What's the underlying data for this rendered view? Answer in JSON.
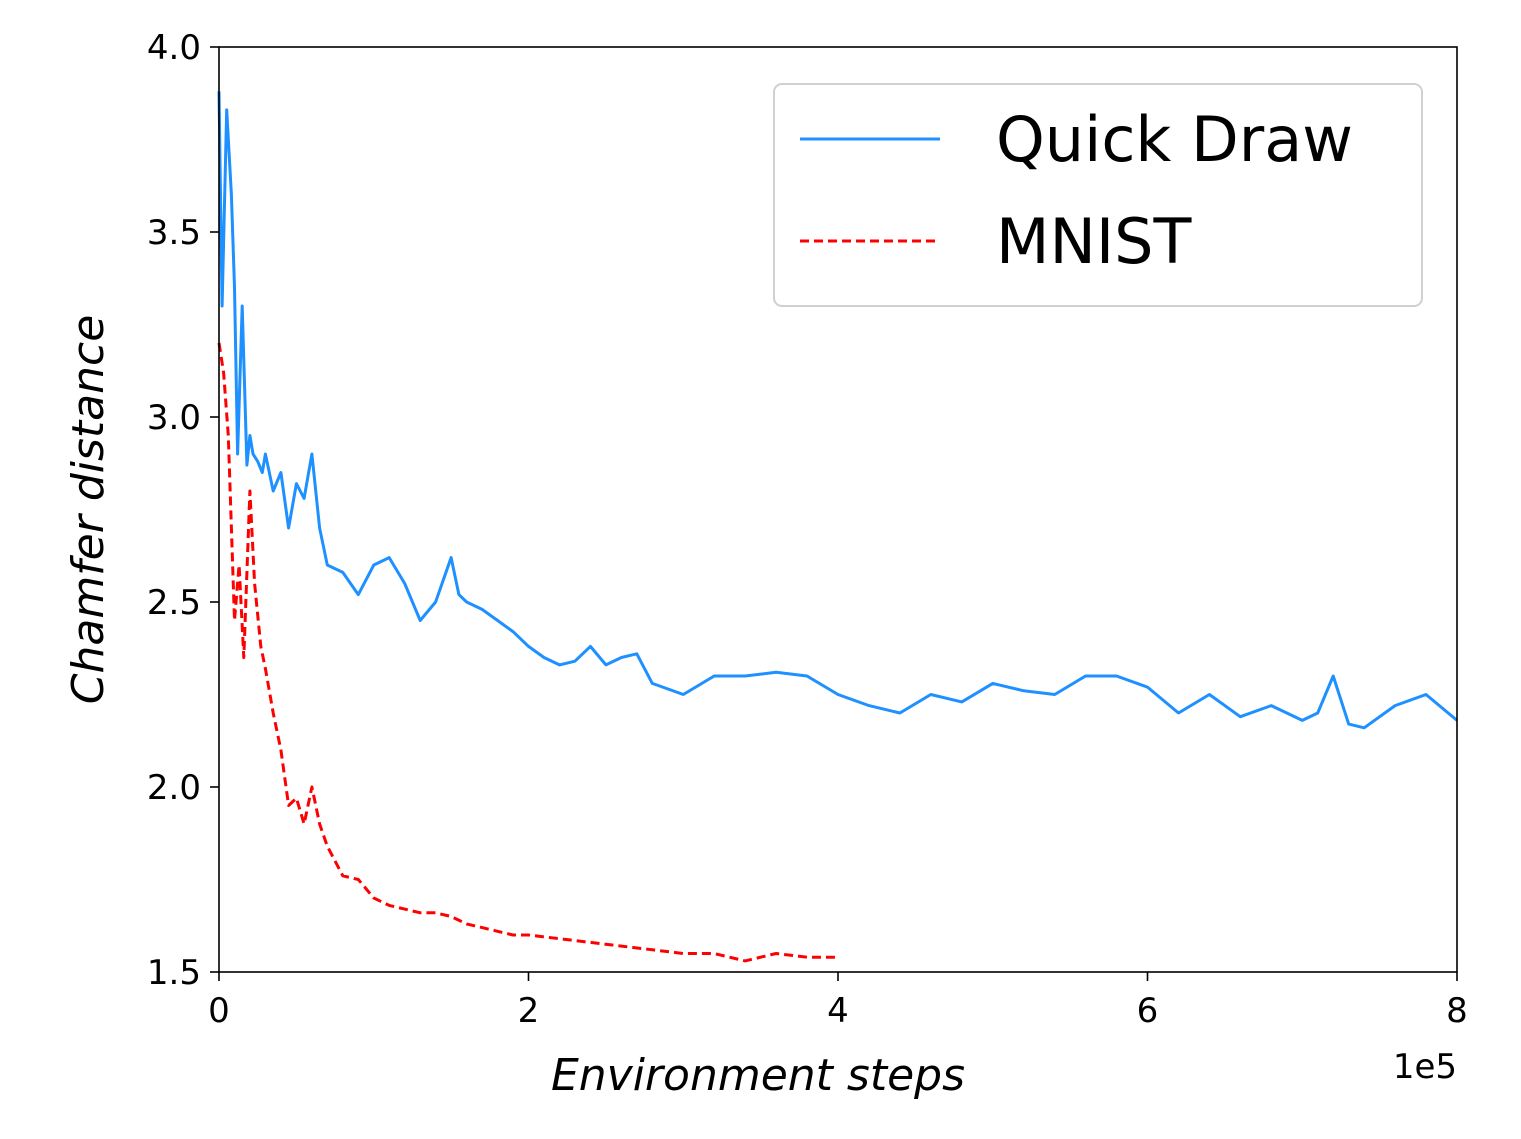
{
  "chart_data": {
    "type": "line",
    "xlabel": "Environment steps",
    "ylabel": "Chamfer distance",
    "x_offset_label": "1e5",
    "xlim": [
      0,
      8
    ],
    "ylim": [
      1.5,
      4.0
    ],
    "xticks": [
      0,
      2,
      4,
      6,
      8
    ],
    "xtick_labels": [
      "0",
      "2",
      "4",
      "6",
      "8"
    ],
    "yticks": [
      1.5,
      2.0,
      2.5,
      3.0,
      3.5,
      4.0
    ],
    "ytick_labels": [
      "1.5",
      "2.0",
      "2.5",
      "3.0",
      "3.5",
      "4.0"
    ],
    "grid": false,
    "legend_position": "top-right",
    "series": [
      {
        "name": "Quick Draw",
        "color": "#1e90ff",
        "style": "solid",
        "x": [
          0,
          0.02,
          0.05,
          0.08,
          0.1,
          0.12,
          0.15,
          0.18,
          0.2,
          0.22,
          0.25,
          0.28,
          0.3,
          0.35,
          0.4,
          0.45,
          0.5,
          0.55,
          0.6,
          0.65,
          0.7,
          0.8,
          0.9,
          1.0,
          1.1,
          1.2,
          1.3,
          1.4,
          1.5,
          1.55,
          1.6,
          1.7,
          1.8,
          1.9,
          2.0,
          2.1,
          2.2,
          2.3,
          2.4,
          2.5,
          2.6,
          2.7,
          2.8,
          3.0,
          3.2,
          3.4,
          3.6,
          3.8,
          4.0,
          4.2,
          4.4,
          4.6,
          4.8,
          5.0,
          5.2,
          5.4,
          5.6,
          5.8,
          6.0,
          6.2,
          6.4,
          6.6,
          6.8,
          7.0,
          7.1,
          7.2,
          7.3,
          7.4,
          7.6,
          7.8,
          8.0
        ],
        "y": [
          3.88,
          3.3,
          3.83,
          3.6,
          3.35,
          2.9,
          3.3,
          2.87,
          2.95,
          2.9,
          2.88,
          2.85,
          2.9,
          2.8,
          2.85,
          2.7,
          2.82,
          2.78,
          2.9,
          2.7,
          2.6,
          2.58,
          2.52,
          2.6,
          2.62,
          2.55,
          2.45,
          2.5,
          2.62,
          2.52,
          2.5,
          2.48,
          2.45,
          2.42,
          2.38,
          2.35,
          2.33,
          2.34,
          2.38,
          2.33,
          2.35,
          2.36,
          2.28,
          2.25,
          2.3,
          2.3,
          2.31,
          2.3,
          2.25,
          2.22,
          2.2,
          2.25,
          2.23,
          2.28,
          2.26,
          2.25,
          2.3,
          2.3,
          2.27,
          2.2,
          2.25,
          2.19,
          2.22,
          2.18,
          2.2,
          2.3,
          2.17,
          2.16,
          2.22,
          2.25,
          2.18
        ]
      },
      {
        "name": "MNIST",
        "color": "#ff0000",
        "style": "dashed",
        "x": [
          0,
          0.03,
          0.06,
          0.1,
          0.13,
          0.16,
          0.2,
          0.23,
          0.27,
          0.3,
          0.35,
          0.4,
          0.45,
          0.5,
          0.55,
          0.6,
          0.65,
          0.7,
          0.8,
          0.9,
          1.0,
          1.1,
          1.2,
          1.3,
          1.4,
          1.5,
          1.6,
          1.7,
          1.8,
          1.9,
          2.0,
          2.2,
          2.4,
          2.6,
          2.8,
          3.0,
          3.2,
          3.4,
          3.6,
          3.8,
          4.0
        ],
        "y": [
          3.2,
          3.12,
          2.95,
          2.45,
          2.6,
          2.35,
          2.8,
          2.55,
          2.38,
          2.32,
          2.2,
          2.1,
          1.95,
          1.97,
          1.9,
          2.0,
          1.9,
          1.84,
          1.76,
          1.75,
          1.7,
          1.68,
          1.67,
          1.66,
          1.66,
          1.65,
          1.63,
          1.62,
          1.61,
          1.6,
          1.6,
          1.59,
          1.58,
          1.57,
          1.56,
          1.55,
          1.55,
          1.53,
          1.55,
          1.54,
          1.54
        ]
      }
    ]
  }
}
